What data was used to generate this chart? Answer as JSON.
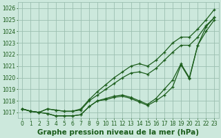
{
  "x": [
    0,
    1,
    2,
    3,
    4,
    5,
    6,
    7,
    8,
    9,
    10,
    11,
    12,
    13,
    14,
    15,
    16,
    17,
    18,
    19,
    20,
    21,
    22,
    23
  ],
  "line1": [
    1017.3,
    1017.1,
    1017.0,
    1016.9,
    1016.7,
    1016.7,
    1016.7,
    1016.8,
    1017.5,
    1018.0,
    1018.1,
    1018.3,
    1018.4,
    1018.2,
    1017.9,
    1017.6,
    1018.0,
    1018.5,
    1019.2,
    1021.1,
    1019.9,
    1022.8,
    1024.0,
    1025.0
  ],
  "line2": [
    1017.3,
    1017.1,
    1017.0,
    1016.9,
    1016.7,
    1016.7,
    1016.7,
    1016.8,
    1017.5,
    1018.0,
    1018.2,
    1018.4,
    1018.5,
    1018.3,
    1018.0,
    1017.7,
    1018.2,
    1019.0,
    1019.8,
    1021.2,
    1020.0,
    1022.8,
    1024.4,
    1025.2
  ],
  "line3": [
    1017.3,
    1017.1,
    1017.0,
    1017.3,
    1017.2,
    1017.1,
    1017.1,
    1017.2,
    1018.0,
    1018.5,
    1019.0,
    1019.5,
    1020.0,
    1020.4,
    1020.5,
    1020.3,
    1020.8,
    1021.5,
    1022.2,
    1022.8,
    1022.8,
    1023.5,
    1024.5,
    1025.2
  ],
  "line4": [
    1017.3,
    1017.1,
    1017.0,
    1017.3,
    1017.2,
    1017.1,
    1017.1,
    1017.3,
    1018.1,
    1018.8,
    1019.4,
    1020.0,
    1020.5,
    1021.0,
    1021.2,
    1021.0,
    1021.5,
    1022.2,
    1023.0,
    1023.5,
    1023.5,
    1024.2,
    1025.0,
    1025.9
  ],
  "ylim": [
    1016.5,
    1026.5
  ],
  "yticks": [
    1017,
    1018,
    1019,
    1020,
    1021,
    1022,
    1023,
    1024,
    1025,
    1026
  ],
  "xticks": [
    0,
    1,
    2,
    3,
    4,
    5,
    6,
    7,
    8,
    9,
    10,
    11,
    12,
    13,
    14,
    15,
    16,
    17,
    18,
    19,
    20,
    21,
    22,
    23
  ],
  "bg_color": "#cce8dc",
  "grid_color": "#9bbfb0",
  "line_color": "#1a5c1a",
  "xlabel": "Graphe pression niveau de la mer (hPa)",
  "tick_fontsize": 5.5,
  "label_fontsize": 7.5,
  "figwidth": 3.2,
  "figheight": 2.0,
  "dpi": 100
}
